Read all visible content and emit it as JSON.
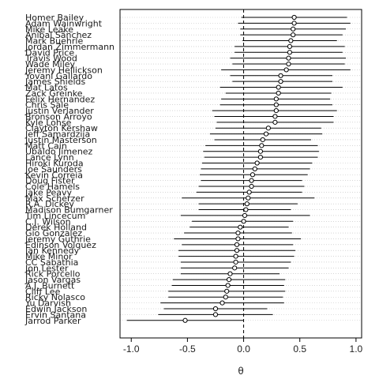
{
  "chart_data": {
    "type": "scatter",
    "title": "",
    "xlabel": "θ",
    "ylabel": "",
    "xlim": [
      -1.1,
      1.05
    ],
    "xticks": [
      -1.0,
      -0.5,
      0.0,
      0.5,
      1.0
    ],
    "xtick_labels": [
      "-1.0",
      "-0.5",
      "0.0",
      "0.5",
      "1.0"
    ],
    "reference_line": 0.0,
    "grid": "horizontal dotted",
    "series": [
      {
        "name": "Homer Bailey",
        "estimate": 0.45,
        "low": -0.02,
        "high": 0.92
      },
      {
        "name": "Adam Wainwright",
        "estimate": 0.45,
        "low": -0.05,
        "high": 0.95
      },
      {
        "name": "Mike Leake",
        "estimate": 0.44,
        "low": -0.03,
        "high": 0.91
      },
      {
        "name": "Aníbal Sánchez",
        "estimate": 0.44,
        "low": -0.03,
        "high": 0.88
      },
      {
        "name": "Mark Buehrle",
        "estimate": 0.42,
        "low": -0.01,
        "high": 0.83
      },
      {
        "name": "Jordan Zimmermann",
        "estimate": 0.41,
        "low": -0.08,
        "high": 0.9
      },
      {
        "name": "David Price",
        "estimate": 0.41,
        "low": -0.08,
        "high": 0.88
      },
      {
        "name": "Travis Wood",
        "estimate": 0.4,
        "low": -0.12,
        "high": 0.91
      },
      {
        "name": "Wade Miley",
        "estimate": 0.4,
        "low": -0.1,
        "high": 0.9
      },
      {
        "name": "Jeremy Hellickson",
        "estimate": 0.38,
        "low": -0.2,
        "high": 0.95
      },
      {
        "name": "Yovani Gallardo",
        "estimate": 0.33,
        "low": -0.12,
        "high": 0.79
      },
      {
        "name": "James Shields",
        "estimate": 0.33,
        "low": -0.1,
        "high": 0.79
      },
      {
        "name": "Mat Latos",
        "estimate": 0.31,
        "low": -0.21,
        "high": 0.88
      },
      {
        "name": "Zack Greinke",
        "estimate": 0.31,
        "low": -0.16,
        "high": 0.78
      },
      {
        "name": "Felix Hernandez",
        "estimate": 0.29,
        "low": -0.2,
        "high": 0.77
      },
      {
        "name": "Chris Sale",
        "estimate": 0.29,
        "low": -0.21,
        "high": 0.79
      },
      {
        "name": "Justin Verlander",
        "estimate": 0.29,
        "low": -0.28,
        "high": 0.83
      },
      {
        "name": "Bronson Arroyo",
        "estimate": 0.28,
        "low": -0.26,
        "high": 0.8
      },
      {
        "name": "Kyle Lohse",
        "estimate": 0.28,
        "low": -0.24,
        "high": 0.8
      },
      {
        "name": "Clayton Kershaw",
        "estimate": 0.22,
        "low": -0.25,
        "high": 0.69
      },
      {
        "name": "Jeff Samardzija",
        "estimate": 0.2,
        "low": -0.3,
        "high": 0.7
      },
      {
        "name": "Justin Masterson",
        "estimate": 0.17,
        "low": -0.26,
        "high": 0.6
      },
      {
        "name": "Matt Cain",
        "estimate": 0.16,
        "low": -0.34,
        "high": 0.66
      },
      {
        "name": "Ubaldo Jimenez",
        "estimate": 0.15,
        "low": -0.36,
        "high": 0.67
      },
      {
        "name": "Lance Lynn",
        "estimate": 0.15,
        "low": -0.35,
        "high": 0.66
      },
      {
        "name": "Hiroki Kuroda",
        "estimate": 0.12,
        "low": -0.37,
        "high": 0.61
      },
      {
        "name": "Joe Saunders",
        "estimate": 0.1,
        "low": -0.38,
        "high": 0.59
      },
      {
        "name": "Kevin Correia",
        "estimate": 0.08,
        "low": -0.39,
        "high": 0.57
      },
      {
        "name": "Doug Fister",
        "estimate": 0.07,
        "low": -0.38,
        "high": 0.52
      },
      {
        "name": "Cole Hamels",
        "estimate": 0.07,
        "low": -0.4,
        "high": 0.54
      },
      {
        "name": "Jake Peavy",
        "estimate": 0.05,
        "low": -0.42,
        "high": 0.52
      },
      {
        "name": "Max Scherzer",
        "estimate": 0.04,
        "low": -0.55,
        "high": 0.63
      },
      {
        "name": "R.A. Dickey",
        "estimate": 0.03,
        "low": -0.4,
        "high": 0.48
      },
      {
        "name": "Madison Bumgarner",
        "estimate": 0.02,
        "low": -0.4,
        "high": 0.42
      },
      {
        "name": "Tim Lincecum",
        "estimate": 0.01,
        "low": -0.56,
        "high": 0.59
      },
      {
        "name": "C.J. Wilson",
        "estimate": 0.0,
        "low": -0.46,
        "high": 0.44
      },
      {
        "name": "Derek Holland",
        "estimate": -0.03,
        "low": -0.48,
        "high": 0.4
      },
      {
        "name": "Gio Gonzalez",
        "estimate": -0.05,
        "low": -0.53,
        "high": 0.43
      },
      {
        "name": "Jeremy Guthrie",
        "estimate": -0.05,
        "low": -0.62,
        "high": 0.51
      },
      {
        "name": "Edinson Volquez",
        "estimate": -0.06,
        "low": -0.55,
        "high": 0.44
      },
      {
        "name": "Ian Kennedy",
        "estimate": -0.06,
        "low": -0.58,
        "high": 0.46
      },
      {
        "name": "Mike Minor",
        "estimate": -0.07,
        "low": -0.58,
        "high": 0.45
      },
      {
        "name": "CC Sabathia",
        "estimate": -0.07,
        "low": -0.56,
        "high": 0.42
      },
      {
        "name": "Jon Lester",
        "estimate": -0.08,
        "low": -0.56,
        "high": 0.4
      },
      {
        "name": "Rick Porcello",
        "estimate": -0.12,
        "low": -0.56,
        "high": 0.32
      },
      {
        "name": "Jason Vargas",
        "estimate": -0.13,
        "low": -0.63,
        "high": 0.37
      },
      {
        "name": "A.J. Burnett",
        "estimate": -0.14,
        "low": -0.64,
        "high": 0.36
      },
      {
        "name": "Cliff Lee",
        "estimate": -0.15,
        "low": -0.67,
        "high": 0.37
      },
      {
        "name": "Ricky Nolasco",
        "estimate": -0.16,
        "low": -0.67,
        "high": 0.35
      },
      {
        "name": "Yu Darvish",
        "estimate": -0.19,
        "low": -0.74,
        "high": 0.36
      },
      {
        "name": "Edwin Jackson",
        "estimate": -0.25,
        "low": -0.71,
        "high": 0.21
      },
      {
        "name": "Ervin Santana",
        "estimate": -0.25,
        "low": -0.76,
        "high": 0.26
      },
      {
        "name": "Jarrod Parker",
        "estimate": -0.52,
        "low": -1.04,
        "high": 0.0
      }
    ]
  }
}
